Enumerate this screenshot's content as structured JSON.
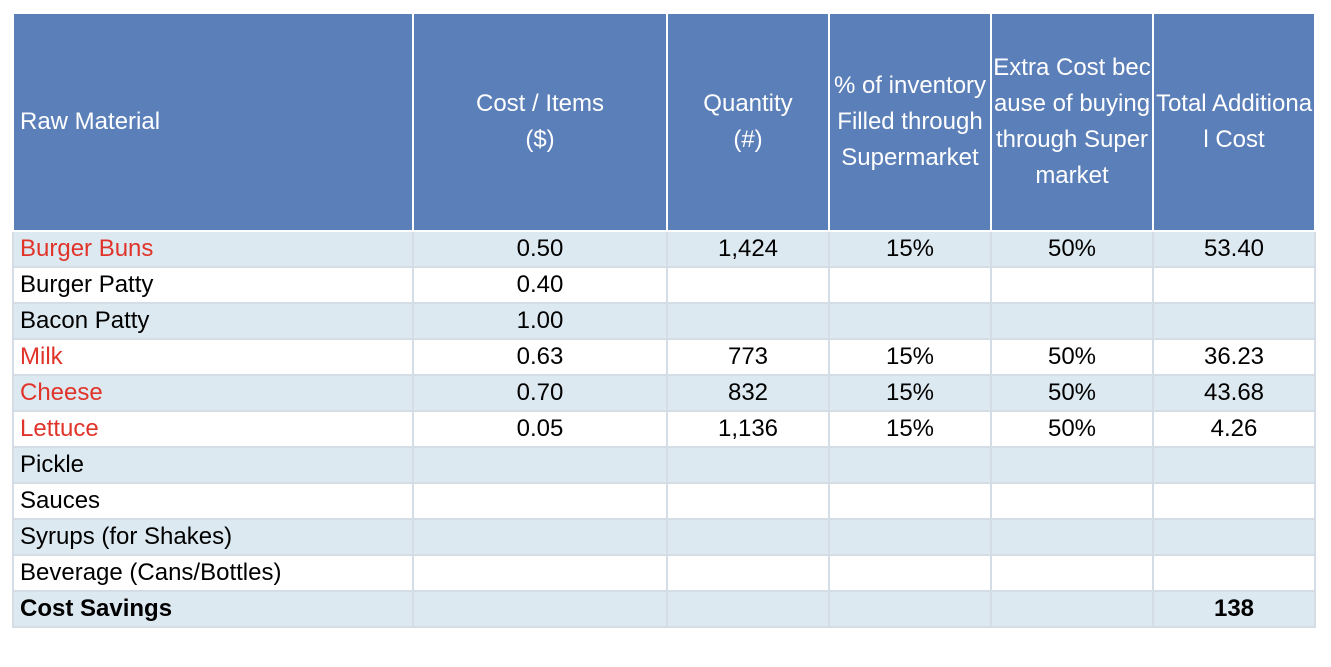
{
  "headers": [
    "Raw Material",
    "Cost / Items\n($)",
    "Quantity\n(#)",
    "% of inventory Filled through Supermarket",
    "Extra Cost because of buying through Supermarket",
    "Total Additional Cost"
  ],
  "rows": [
    {
      "name": "Burger Buns",
      "cost": "0.50",
      "qty": "1,424",
      "pct": "15%",
      "extra": "50%",
      "total": "53.40",
      "highlight": true
    },
    {
      "name": "Burger Patty",
      "cost": "0.40",
      "qty": "",
      "pct": "",
      "extra": "",
      "total": "",
      "highlight": false
    },
    {
      "name": "Bacon Patty",
      "cost": "1.00",
      "qty": "",
      "pct": "",
      "extra": "",
      "total": "",
      "highlight": false
    },
    {
      "name": "Milk",
      "cost": "0.63",
      "qty": "773",
      "pct": "15%",
      "extra": "50%",
      "total": "36.23",
      "highlight": true
    },
    {
      "name": "Cheese",
      "cost": "0.70",
      "qty": "832",
      "pct": "15%",
      "extra": "50%",
      "total": "43.68",
      "highlight": true
    },
    {
      "name": "Lettuce",
      "cost": "0.05",
      "qty": "1,136",
      "pct": "15%",
      "extra": "50%",
      "total": "4.26",
      "highlight": true
    },
    {
      "name": "Pickle",
      "cost": "",
      "qty": "",
      "pct": "",
      "extra": "",
      "total": "",
      "highlight": false
    },
    {
      "name": "Sauces",
      "cost": "",
      "qty": "",
      "pct": "",
      "extra": "",
      "total": "",
      "highlight": false
    },
    {
      "name": "Syrups (for Shakes)",
      "cost": "",
      "qty": "",
      "pct": "",
      "extra": "",
      "total": "",
      "highlight": false
    },
    {
      "name": "Beverage (Cans/Bottles)",
      "cost": "",
      "qty": "",
      "pct": "",
      "extra": "",
      "total": "",
      "highlight": false
    }
  ],
  "footer": {
    "label": "Cost Savings",
    "total": "138"
  },
  "colors": {
    "header_bg": "#5b7fb8",
    "highlight_text": "#e0342a",
    "stripe": "#dde9f0"
  }
}
